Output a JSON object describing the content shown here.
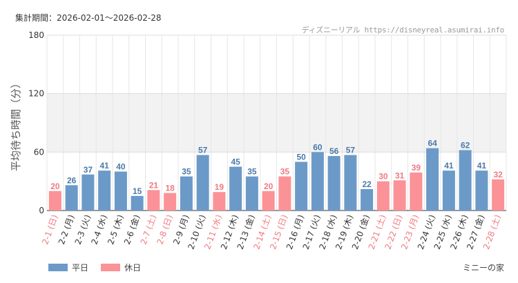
{
  "header": {
    "period": "集計期間：2026-02-01～2026-02-28",
    "site": "ディズニーリアル https://disneyreal.asumirai.info"
  },
  "footer": {
    "name": "ミニーの家"
  },
  "colors": {
    "weekday": "#6b9ac8",
    "holiday": "#fb9297",
    "holiday_text": "#ee7b80",
    "weekday_text": "#4a7aab",
    "band": "#f2f2f2"
  },
  "chart_data": {
    "type": "bar",
    "title": "",
    "xlabel": "",
    "ylabel": "平均待ち時間（分）",
    "ylim": [
      0,
      180
    ],
    "yticks": [
      0,
      60,
      120,
      180
    ],
    "categories": [
      "2-1 (日)",
      "2-2 (月)",
      "2-3 (火)",
      "2-4 (水)",
      "2-5 (木)",
      "2-6 (金)",
      "2-7 (土)",
      "2-8 (日)",
      "2-9 (月)",
      "2-10 (火)",
      "2-11 (水)",
      "2-12 (木)",
      "2-13 (金)",
      "2-14 (土)",
      "2-15 (日)",
      "2-16 (月)",
      "2-17 (火)",
      "2-18 (水)",
      "2-19 (木)",
      "2-20 (金)",
      "2-21 (土)",
      "2-22 (日)",
      "2-23 (月)",
      "2-24 (火)",
      "2-25 (水)",
      "2-26 (木)",
      "2-27 (金)",
      "2-28 (土)"
    ],
    "values": [
      20,
      26,
      37,
      41,
      40,
      15,
      21,
      18,
      35,
      57,
      19,
      45,
      35,
      20,
      35,
      50,
      60,
      56,
      57,
      22,
      30,
      31,
      39,
      64,
      41,
      62,
      41,
      32
    ],
    "day_type": [
      "holiday",
      "weekday",
      "weekday",
      "weekday",
      "weekday",
      "weekday",
      "holiday",
      "holiday",
      "weekday",
      "weekday",
      "holiday",
      "weekday",
      "weekday",
      "holiday",
      "holiday",
      "weekday",
      "weekday",
      "weekday",
      "weekday",
      "weekday",
      "holiday",
      "holiday",
      "holiday",
      "weekday",
      "weekday",
      "weekday",
      "weekday",
      "holiday"
    ],
    "series": [
      {
        "name": "平日",
        "key": "weekday"
      },
      {
        "name": "休日",
        "key": "holiday"
      }
    ],
    "legend_position": "bottom-left"
  }
}
